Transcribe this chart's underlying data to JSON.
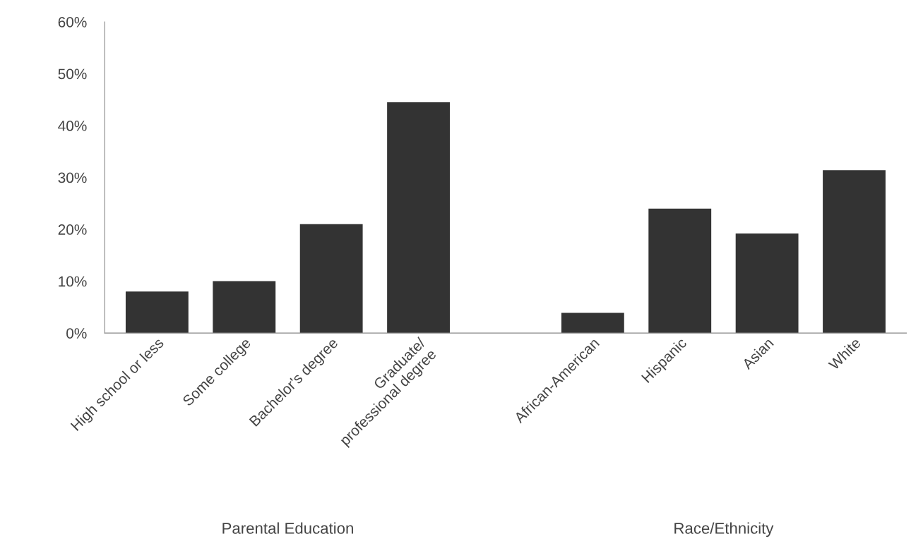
{
  "chart_data": {
    "type": "bar",
    "categories": [
      "High school or less",
      "Some college",
      "Bachelor's degree",
      "Graduate/\nprofessional degree",
      null,
      "African-American",
      "Hispanic",
      "Asian",
      "White"
    ],
    "values": [
      8,
      10,
      21,
      44.5,
      null,
      3.9,
      24,
      19.2,
      31.4
    ],
    "color": "#333333",
    "ylim": [
      0,
      60
    ],
    "yticks": [
      {
        "value": 0,
        "label": "0%"
      },
      {
        "value": 10,
        "label": "10%"
      },
      {
        "value": 20,
        "label": "20%"
      },
      {
        "value": 30,
        "label": "30%"
      },
      {
        "value": 40,
        "label": "40%"
      },
      {
        "value": 50,
        "label": "50%"
      },
      {
        "value": 60,
        "label": "60%"
      }
    ],
    "grid": false,
    "annotations": [
      "Parental Education",
      "Race/Ethnicity"
    ]
  }
}
